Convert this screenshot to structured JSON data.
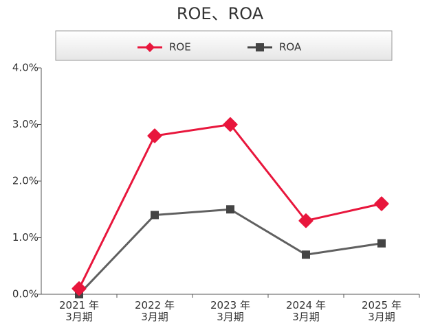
{
  "chart_data": {
    "type": "line",
    "title": "ROE、ROA",
    "categories": [
      "2021 年\n3月期",
      "2022 年\n3月期",
      "2023 年\n3月期",
      "2024 年\n3月期",
      "2025 年\n3月期"
    ],
    "series": [
      {
        "name": "ROE",
        "color": "#e8163c",
        "marker": "diamond",
        "values": [
          0.1,
          2.8,
          3.0,
          1.3,
          1.6
        ]
      },
      {
        "name": "ROA",
        "color": "#444444",
        "marker": "square",
        "values": [
          0.0,
          1.4,
          1.5,
          0.7,
          0.9
        ]
      }
    ],
    "ylim": [
      0,
      4
    ],
    "yticks": [
      {
        "value": 0,
        "label": "0.0%"
      },
      {
        "value": 1,
        "label": "1.0%"
      },
      {
        "value": 2,
        "label": "2.0%"
      },
      {
        "value": 3,
        "label": "3.0%"
      },
      {
        "value": 4,
        "label": "4.0%"
      }
    ],
    "legend": "top"
  }
}
